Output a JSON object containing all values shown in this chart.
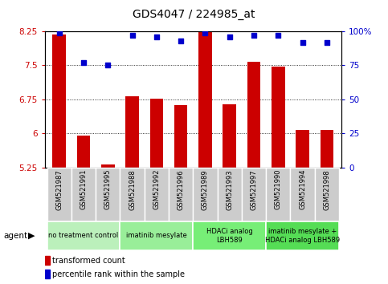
{
  "title": "GDS4047 / 224985_at",
  "samples": [
    "GSM521987",
    "GSM521991",
    "GSM521995",
    "GSM521988",
    "GSM521992",
    "GSM521996",
    "GSM521989",
    "GSM521993",
    "GSM521997",
    "GSM521990",
    "GSM521994",
    "GSM521998"
  ],
  "bar_values": [
    8.18,
    5.95,
    5.32,
    6.82,
    6.77,
    6.62,
    8.62,
    6.65,
    7.58,
    7.47,
    6.08,
    6.07
  ],
  "dot_percentiles": [
    99,
    77,
    75,
    97,
    96,
    93,
    99,
    96,
    97,
    97,
    92,
    92
  ],
  "bar_color": "#cc0000",
  "dot_color": "#0000cc",
  "ylim_left": [
    5.25,
    8.25
  ],
  "ylim_right": [
    0,
    100
  ],
  "yticks_left": [
    5.25,
    6.0,
    6.75,
    7.5,
    8.25
  ],
  "yticks_right": [
    0,
    25,
    50,
    75,
    100
  ],
  "ytick_labels_left": [
    "5.25",
    "6",
    "6.75",
    "7.5",
    "8.25"
  ],
  "ytick_labels_right": [
    "0",
    "25",
    "50",
    "75",
    "100%"
  ],
  "groups": [
    {
      "label": "no treatment control",
      "start": 0,
      "end": 3,
      "color": "#bbf0bb"
    },
    {
      "label": "imatinib mesylate",
      "start": 3,
      "end": 6,
      "color": "#99ee99"
    },
    {
      "label": "HDACi analog\nLBH589",
      "start": 6,
      "end": 9,
      "color": "#77ee77"
    },
    {
      "label": "imatinib mesylate +\nHDACi analog LBH589",
      "start": 9,
      "end": 12,
      "color": "#55dd55"
    }
  ],
  "agent_label": "agent",
  "legend_bar_label": "transformed count",
  "legend_dot_label": "percentile rank within the sample",
  "tick_bg_color": "#cccccc",
  "bar_width": 0.55
}
